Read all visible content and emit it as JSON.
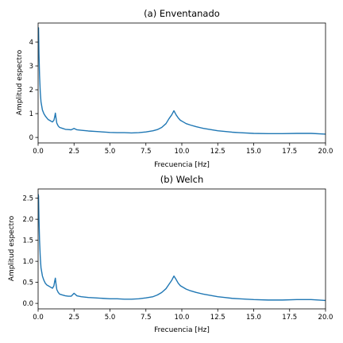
{
  "figure": {
    "background": "#ffffff",
    "line_color": "#1f77b4"
  },
  "chart_data": [
    {
      "type": "line",
      "title": "(a) Enventanado",
      "xlabel": "Frecuencia [Hz]",
      "ylabel": "Amplitud espectro",
      "xlim": [
        0,
        20
      ],
      "ylim": [
        -0.23,
        4.8
      ],
      "xticks": [
        0,
        2.5,
        5,
        7.5,
        10,
        12.5,
        15,
        17.5,
        20
      ],
      "xtick_labels": [
        "0.0",
        "2.5",
        "5.0",
        "7.5",
        "10.0",
        "12.5",
        "15.0",
        "17.5",
        "20.0"
      ],
      "yticks": [
        0,
        1,
        2,
        3,
        4
      ],
      "ytick_labels": [
        "0",
        "1",
        "2",
        "3",
        "4"
      ],
      "grid": false,
      "series": [
        {
          "x": [
            0,
            0.03,
            0.06,
            0.1,
            0.15,
            0.2,
            0.3,
            0.4,
            0.5,
            0.6,
            0.7,
            0.8,
            0.9,
            1.0,
            1.1,
            1.15,
            1.2,
            1.25,
            1.3,
            1.4,
            1.5,
            1.7,
            1.9,
            2.1,
            2.3,
            2.5,
            2.7,
            3.0,
            3.5,
            4.0,
            4.5,
            5.0,
            5.5,
            6.0,
            6.5,
            7.0,
            7.5,
            8.0,
            8.3,
            8.6,
            8.9,
            9.1,
            9.3,
            9.45,
            9.6,
            9.75,
            9.9,
            10.1,
            10.3,
            10.6,
            11.0,
            11.5,
            12.0,
            12.5,
            13.0,
            13.5,
            14.0,
            15.0,
            16.0,
            17.0,
            18.0,
            19.0,
            20.0
          ],
          "y": [
            4.55,
            4.6,
            3.5,
            2.6,
            1.9,
            1.5,
            1.15,
            1.0,
            0.9,
            0.82,
            0.75,
            0.72,
            0.68,
            0.65,
            0.72,
            0.85,
            1.02,
            0.8,
            0.6,
            0.48,
            0.42,
            0.38,
            0.34,
            0.33,
            0.32,
            0.38,
            0.32,
            0.3,
            0.27,
            0.25,
            0.23,
            0.21,
            0.2,
            0.2,
            0.19,
            0.2,
            0.23,
            0.28,
            0.33,
            0.42,
            0.58,
            0.78,
            0.95,
            1.12,
            0.95,
            0.82,
            0.72,
            0.65,
            0.58,
            0.52,
            0.45,
            0.38,
            0.33,
            0.28,
            0.25,
            0.22,
            0.2,
            0.17,
            0.16,
            0.16,
            0.17,
            0.17,
            0.14
          ]
        }
      ]
    },
    {
      "type": "line",
      "title": "(b) Welch",
      "xlabel": "Frecuencia [Hz]",
      "ylabel": "Amplitud espectro",
      "xlim": [
        0,
        20
      ],
      "ylim": [
        -0.13,
        2.72
      ],
      "xticks": [
        0,
        2.5,
        5,
        7.5,
        10,
        12.5,
        15,
        17.5,
        20
      ],
      "xtick_labels": [
        "0.0",
        "2.5",
        "5.0",
        "7.5",
        "10.0",
        "12.5",
        "15.0",
        "17.5",
        "20.0"
      ],
      "yticks": [
        0,
        0.5,
        1,
        1.5,
        2,
        2.5
      ],
      "ytick_labels": [
        "0.0",
        "0.5",
        "1.0",
        "1.5",
        "2.0",
        "2.5"
      ],
      "grid": false,
      "series": [
        {
          "x": [
            0,
            0.03,
            0.06,
            0.1,
            0.15,
            0.2,
            0.3,
            0.4,
            0.5,
            0.6,
            0.7,
            0.8,
            0.9,
            1.0,
            1.1,
            1.15,
            1.2,
            1.25,
            1.3,
            1.4,
            1.5,
            1.7,
            1.9,
            2.1,
            2.3,
            2.5,
            2.7,
            3.0,
            3.5,
            4.0,
            4.5,
            5.0,
            5.5,
            6.0,
            6.5,
            7.0,
            7.5,
            8.0,
            8.3,
            8.6,
            8.9,
            9.1,
            9.3,
            9.45,
            9.6,
            9.75,
            9.9,
            10.1,
            10.3,
            10.6,
            11.0,
            11.5,
            12.0,
            12.5,
            13.0,
            13.5,
            14.0,
            15.0,
            16.0,
            17.0,
            18.0,
            19.0,
            20.0
          ],
          "y": [
            2.6,
            2.55,
            2.0,
            1.5,
            1.1,
            0.85,
            0.65,
            0.55,
            0.48,
            0.44,
            0.42,
            0.4,
            0.38,
            0.36,
            0.42,
            0.52,
            0.6,
            0.45,
            0.33,
            0.26,
            0.22,
            0.2,
            0.18,
            0.17,
            0.17,
            0.24,
            0.18,
            0.16,
            0.14,
            0.13,
            0.12,
            0.11,
            0.11,
            0.1,
            0.1,
            0.11,
            0.13,
            0.16,
            0.2,
            0.26,
            0.35,
            0.45,
            0.55,
            0.65,
            0.57,
            0.48,
            0.42,
            0.38,
            0.34,
            0.3,
            0.26,
            0.22,
            0.19,
            0.16,
            0.14,
            0.12,
            0.11,
            0.09,
            0.08,
            0.08,
            0.09,
            0.09,
            0.07
          ]
        }
      ]
    }
  ]
}
